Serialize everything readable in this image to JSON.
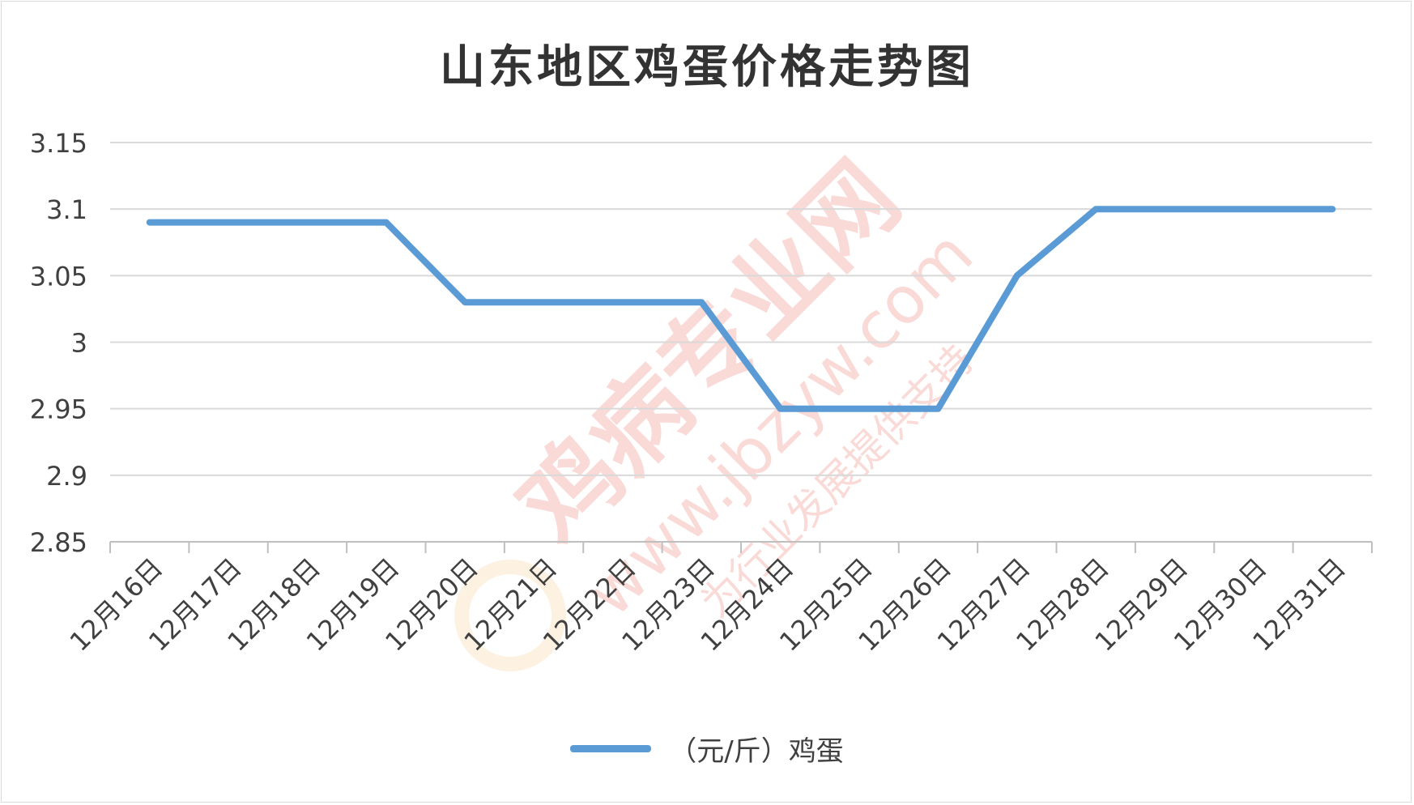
{
  "chart_data": {
    "type": "line",
    "title": "山东地区鸡蛋价格走势图",
    "xlabel": "",
    "ylabel": "",
    "categories": [
      "12月16日",
      "12月17日",
      "12月18日",
      "12月19日",
      "12月20日",
      "12月21日",
      "12月22日",
      "12月23日",
      "12月24日",
      "12月25日",
      "12月26日",
      "12月27日",
      "12月28日",
      "12月29日",
      "12月30日",
      "12月31日"
    ],
    "series": [
      {
        "name": "（元/斤）鸡蛋",
        "values": [
          3.09,
          3.09,
          3.09,
          3.09,
          3.03,
          3.03,
          3.03,
          3.03,
          2.95,
          2.95,
          2.95,
          3.05,
          3.1,
          3.1,
          3.1,
          3.1
        ]
      }
    ],
    "ylim": [
      2.85,
      3.15
    ],
    "yticks": [
      "3.15",
      "3.1",
      "3.05",
      "3",
      "2.95",
      "2.9",
      "2.85"
    ],
    "ytick_values": [
      3.15,
      3.1,
      3.05,
      3.0,
      2.95,
      2.9,
      2.85
    ],
    "grid": true,
    "legend_position": "bottom",
    "line_color": "#5b9bd5"
  },
  "watermark": {
    "main": "鸡病专业网",
    "url": "www.jbzyw.com",
    "slogan": "为行业发展提供支持"
  }
}
